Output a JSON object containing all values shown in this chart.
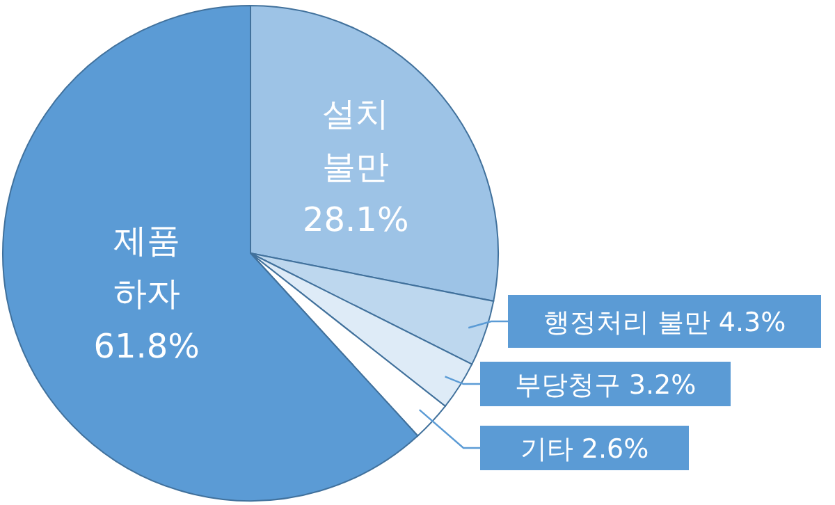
{
  "chart_data": {
    "type": "pie",
    "categories": [
      "설치 불만",
      "행정처리 불만",
      "부당청구",
      "기타",
      "제품 하자"
    ],
    "values": [
      28.1,
      4.3,
      3.2,
      2.6,
      61.8
    ],
    "value_labels": [
      "28.1%",
      "4.3%",
      "3.2%",
      "2.6%",
      "61.8%"
    ],
    "colors": [
      "#9dc3e6",
      "#bdd7ee",
      "#deebf7",
      "#ffffff",
      "#5b9bd5"
    ]
  }
}
